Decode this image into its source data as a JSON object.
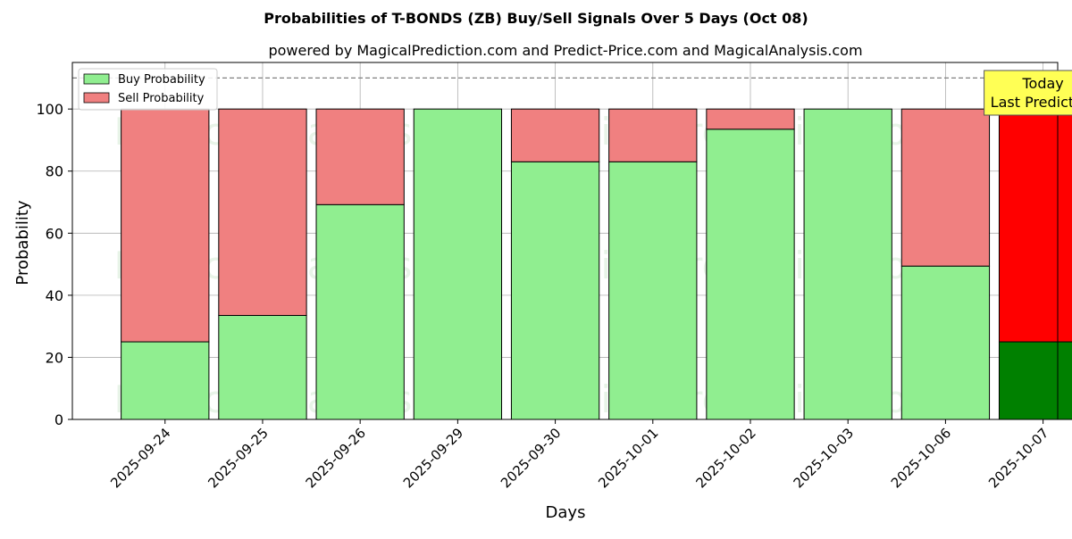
{
  "chart_data": {
    "type": "bar",
    "stacked": true,
    "title": "Probabilities of T-BONDS (ZB) Buy/Sell Signals Over 5 Days (Oct 08)",
    "subtitle": "powered by MagicalPrediction.com and Predict-Price.com and MagicalAnalysis.com",
    "xlabel": "Days",
    "ylabel": "Probability",
    "ylim": [
      0,
      115
    ],
    "yticks": [
      0,
      20,
      40,
      60,
      80,
      100
    ],
    "reference_line": 110,
    "grid": true,
    "legend_position": "top-left",
    "categories": [
      "2025-09-24",
      "2025-09-25",
      "2025-09-26",
      "2025-09-29",
      "2025-09-30",
      "2025-10-01",
      "2025-10-02",
      "2025-10-03",
      "2025-10-06",
      "2025-10-07"
    ],
    "series": [
      {
        "name": "Buy Probability",
        "color": "#90ee90",
        "highlight_color": "#008000",
        "values": [
          25,
          33.5,
          69.2,
          100,
          83,
          83,
          93.5,
          100,
          49.4,
          25
        ]
      },
      {
        "name": "Sell Probability",
        "color": "#f08080",
        "highlight_color": "#ff0000",
        "values": [
          75,
          66.5,
          30.8,
          0,
          17,
          17,
          6.5,
          0,
          50.6,
          75
        ]
      }
    ],
    "highlight_index": 9,
    "annotation": {
      "line1": "Today",
      "line2": "Last Prediction",
      "background": "#ffff55"
    },
    "watermarks": [
      "MagicalAnalysis.com",
      "MagicalPrediction.com"
    ]
  }
}
